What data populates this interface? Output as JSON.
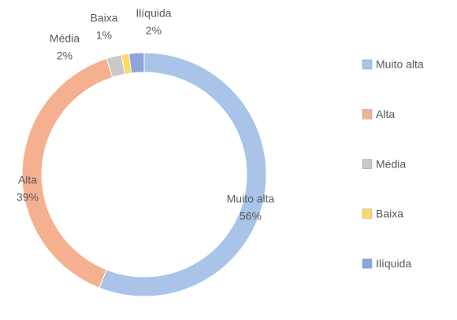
{
  "chart_data": {
    "type": "donut",
    "categories": [
      "Muito alta",
      "Alta",
      "Média",
      "Baixa",
      "Ilíquida"
    ],
    "values": [
      56,
      39,
      2,
      1,
      2
    ],
    "value_labels": [
      "56%",
      "39%",
      "2%",
      "1%",
      "2%"
    ],
    "colors": [
      "#a9c4e8",
      "#f4b08f",
      "#c9c9c9",
      "#ffd966",
      "#8fa3dc"
    ],
    "legend": "right"
  }
}
